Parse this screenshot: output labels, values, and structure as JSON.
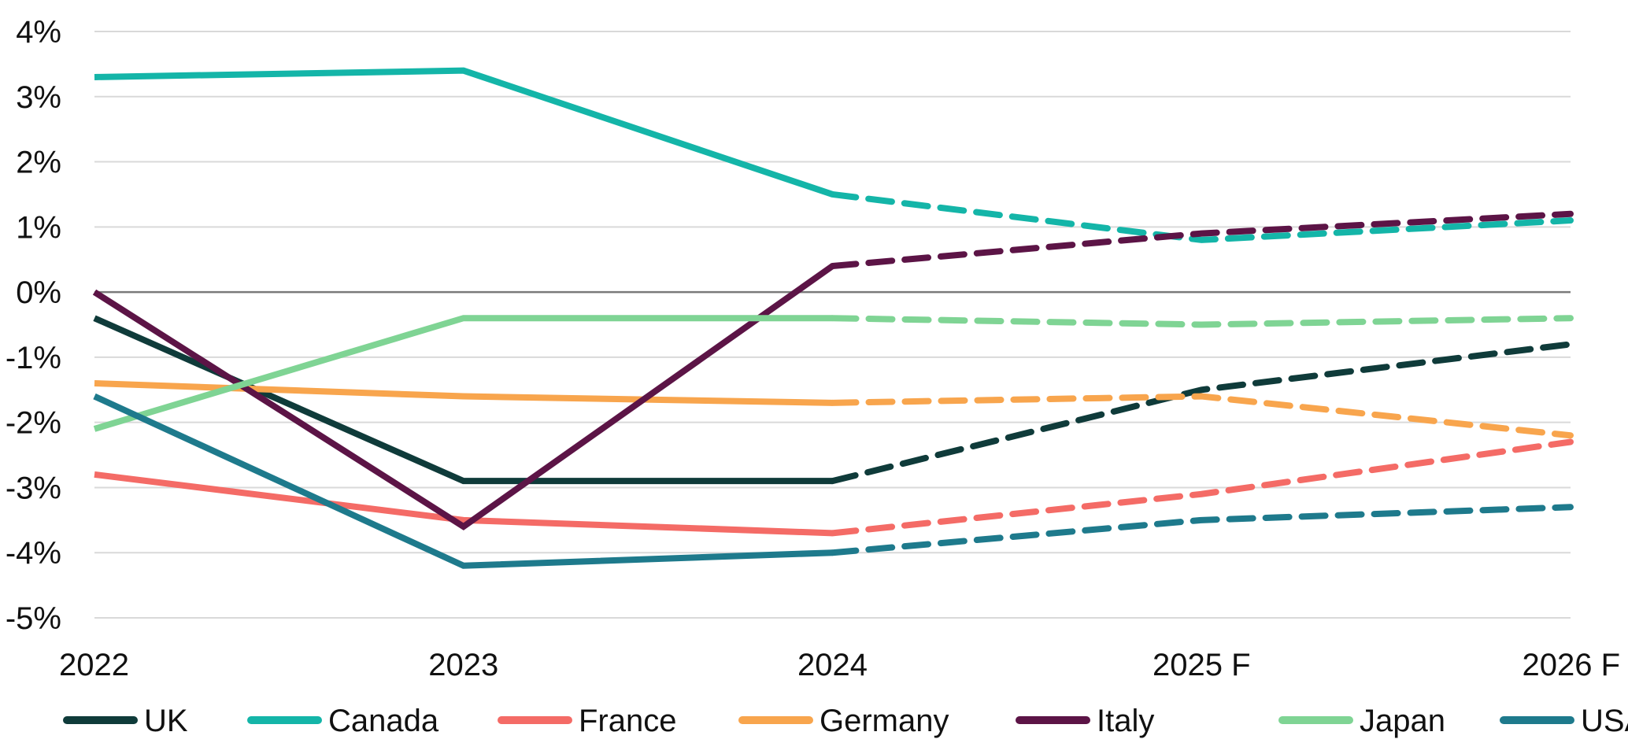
{
  "chart_data": {
    "type": "line",
    "title": "",
    "xlabel": "",
    "ylabel": "",
    "categories": [
      "2022",
      "2023",
      "2024",
      "2025 F",
      "2026 F"
    ],
    "actual_through": "2024",
    "forecast_style": "dashed",
    "ylim": [
      -5,
      4
    ],
    "yticks": [
      4,
      3,
      2,
      1,
      0,
      -1,
      -2,
      -3,
      -4,
      -5
    ],
    "ytick_labels": [
      "4%",
      "3%",
      "2%",
      "1%",
      "0%",
      "-1%",
      "-2%",
      "-3%",
      "-4%",
      "-5%"
    ],
    "grid": true,
    "legend_position": "bottom",
    "series": [
      {
        "name": "UK",
        "color": "#0f3b3a",
        "values": [
          -0.4,
          -2.9,
          -2.9,
          -1.5,
          -0.8
        ]
      },
      {
        "name": "Canada",
        "color": "#14b5a8",
        "values": [
          3.3,
          3.4,
          1.5,
          0.8,
          1.1
        ]
      },
      {
        "name": "France",
        "color": "#f46b66",
        "values": [
          -2.8,
          -3.5,
          -3.7,
          -3.1,
          -2.3
        ]
      },
      {
        "name": "Germany",
        "color": "#f8a54d",
        "values": [
          -1.4,
          -1.6,
          -1.7,
          -1.6,
          -2.2
        ]
      },
      {
        "name": "Italy",
        "color": "#5c1446",
        "values": [
          0.0,
          -3.6,
          0.4,
          0.9,
          1.2
        ]
      },
      {
        "name": "Japan",
        "color": "#7fd494",
        "values": [
          -2.1,
          -0.4,
          -0.4,
          -0.5,
          -0.4
        ]
      },
      {
        "name": "USA",
        "color": "#1e7a8c",
        "values": [
          -1.6,
          -4.2,
          -4.0,
          -3.5,
          -3.3
        ]
      }
    ]
  }
}
